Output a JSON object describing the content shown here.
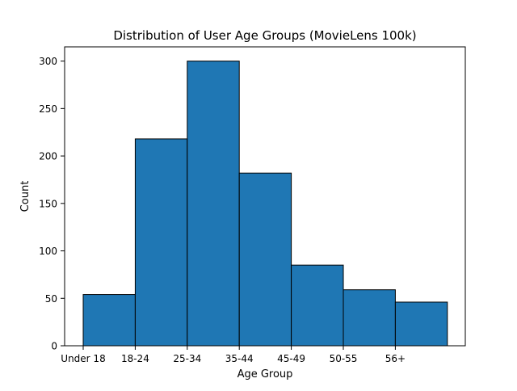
{
  "chart_data": {
    "type": "bar",
    "title": "Distribution of User Age Groups (MovieLens 100k)",
    "xlabel": "Age Group",
    "ylabel": "Count",
    "categories": [
      "Under 18",
      "18-24",
      "25-34",
      "35-44",
      "45-49",
      "50-55",
      "56+"
    ],
    "values": [
      54,
      218,
      300,
      182,
      85,
      59,
      46
    ],
    "x_tick_labels": [
      "Under 18",
      "18-24",
      "25-34",
      "35-44",
      "45-49",
      "50-55",
      "56+"
    ],
    "y_ticks": [
      0,
      50,
      100,
      150,
      200,
      250,
      300
    ],
    "ylim": [
      0,
      315
    ],
    "bar_color": "#1f77b4",
    "edge_color": "#000000",
    "grid": false,
    "legend": "none"
  }
}
